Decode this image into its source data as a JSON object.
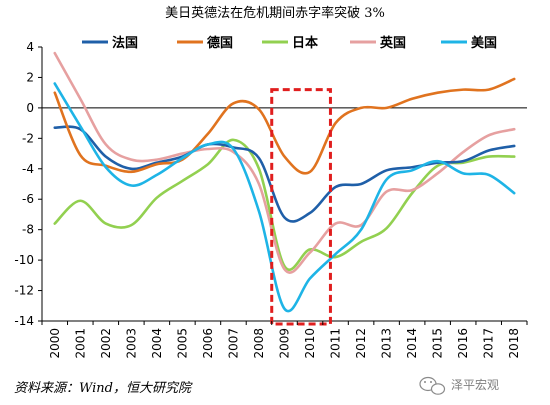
{
  "chart_data": {
    "type": "line",
    "title": "美日英德法在危机期间赤字率突破 3%",
    "x": [
      2000,
      2001,
      2002,
      2003,
      2004,
      2005,
      2006,
      2007,
      2008,
      2009,
      2010,
      2011,
      2012,
      2013,
      2014,
      2015,
      2016,
      2017,
      2018
    ],
    "x_tick_labels": [
      "2000",
      "2001",
      "2002",
      "2003",
      "2004",
      "2005",
      "2006",
      "2007",
      "2008",
      "2009",
      "2010",
      "2011",
      "2012",
      "2013",
      "2014",
      "2015",
      "2016",
      "2017",
      "2018"
    ],
    "ylim": [
      -14,
      4
    ],
    "y_ticks": [
      4,
      2,
      0,
      -2,
      -4,
      -6,
      -8,
      -10,
      -12,
      -14
    ],
    "grid": false,
    "legend_position": "top",
    "series": [
      {
        "name": "法国",
        "color": "#1f5fa8",
        "values": [
          -1.3,
          -1.4,
          -3.2,
          -4.0,
          -3.6,
          -3.2,
          -2.4,
          -2.6,
          -3.3,
          -7.2,
          -6.9,
          -5.2,
          -5.0,
          -4.1,
          -3.9,
          -3.6,
          -3.5,
          -2.8,
          -2.5
        ]
      },
      {
        "name": "德国",
        "color": "#e0731f",
        "values": [
          1.0,
          -3.1,
          -3.8,
          -4.2,
          -3.7,
          -3.4,
          -1.7,
          0.3,
          -0.1,
          -3.2,
          -4.2,
          -1.0,
          0.0,
          0.0,
          0.6,
          1.0,
          1.2,
          1.2,
          1.9
        ]
      },
      {
        "name": "日本",
        "color": "#92d050",
        "values": [
          -7.6,
          -6.1,
          -7.6,
          -7.7,
          -5.9,
          -4.8,
          -3.7,
          -2.1,
          -4.0,
          -10.4,
          -9.3,
          -9.8,
          -8.8,
          -7.9,
          -5.6,
          -3.8,
          -3.6,
          -3.2,
          -3.2
        ]
      },
      {
        "name": "英国",
        "color": "#e6a0a0",
        "values": [
          3.6,
          0.6,
          -2.4,
          -3.4,
          -3.4,
          -3.0,
          -2.7,
          -2.9,
          -5.0,
          -10.6,
          -9.5,
          -7.6,
          -7.7,
          -5.5,
          -5.4,
          -4.3,
          -2.9,
          -1.8,
          -1.4
        ]
      },
      {
        "name": "美国",
        "color": "#1eb4e6",
        "values": [
          1.6,
          -1.2,
          -3.9,
          -5.1,
          -4.4,
          -3.3,
          -2.4,
          -2.7,
          -6.8,
          -13.2,
          -11.2,
          -9.6,
          -8.0,
          -4.7,
          -4.1,
          -3.5,
          -4.3,
          -4.4,
          -5.6
        ]
      }
    ],
    "highlight": {
      "x_range": [
        2008.5,
        2010.8
      ],
      "y_range": [
        -14.2,
        1.2
      ],
      "color": "#e01e1e"
    }
  },
  "source_text": "资料来源：Wind，恒大研究院",
  "watermark_text": "泽平宏观"
}
